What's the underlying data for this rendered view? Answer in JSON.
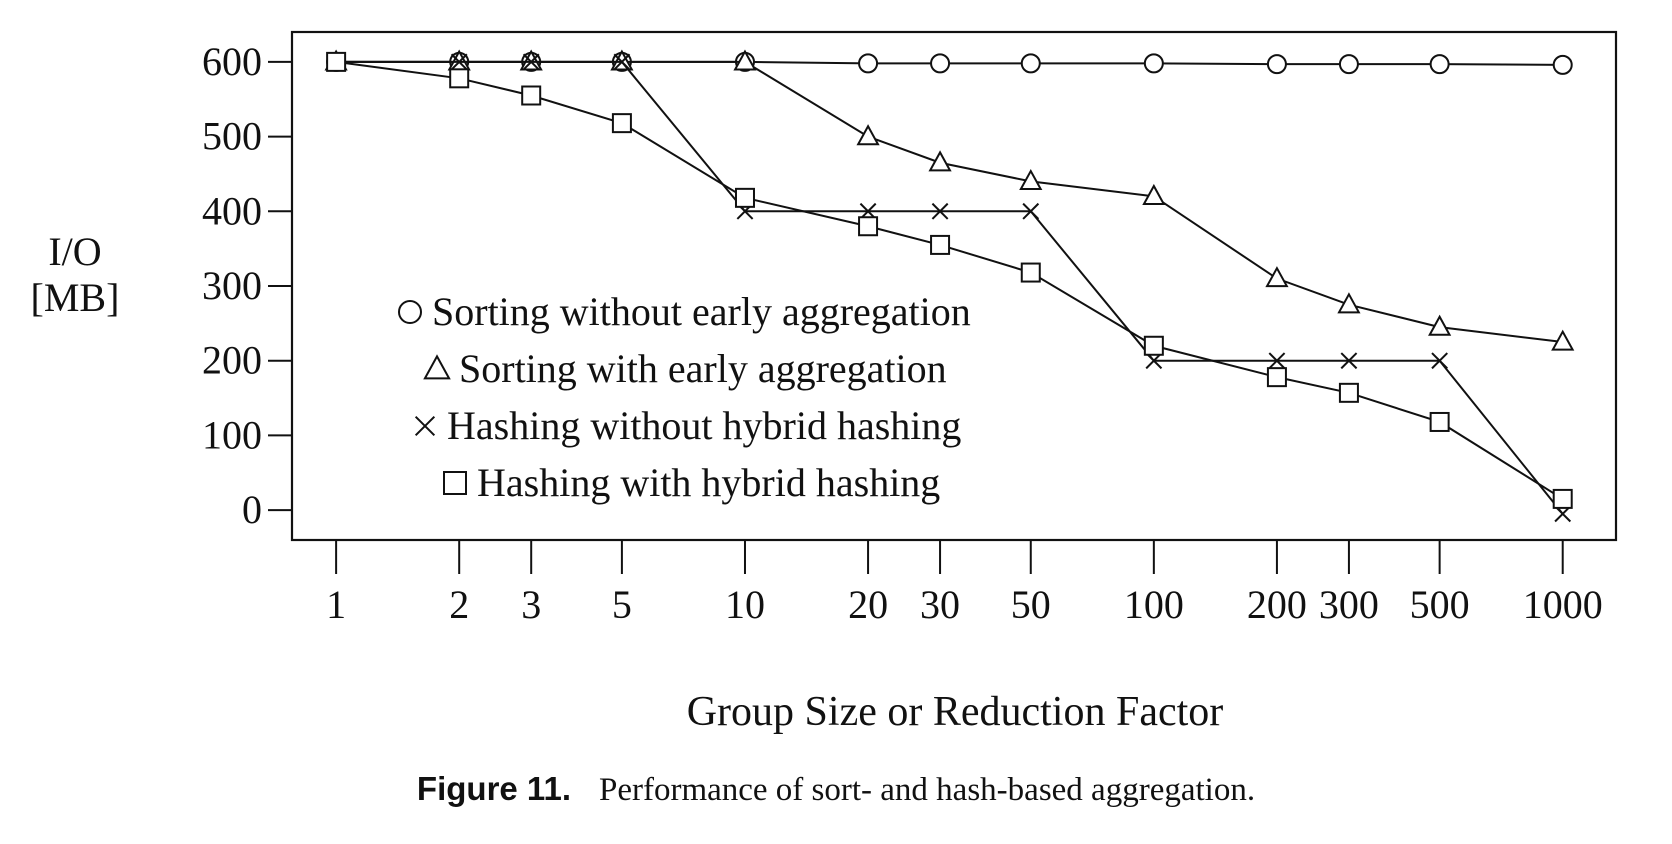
{
  "caption": {
    "label": "Figure 11.",
    "text": "Performance of sort- and hash-based aggregation."
  },
  "chart_data": {
    "type": "line",
    "xlabel": "Group Size or Reduction Factor",
    "ylabel_lines": [
      "I/O",
      "[MB]"
    ],
    "x_scale": "log",
    "x_ticks": [
      1,
      2,
      3,
      5,
      10,
      20,
      30,
      50,
      100,
      200,
      300,
      500,
      1000
    ],
    "x_tick_labels": [
      "1",
      "2",
      "3",
      "5",
      "10",
      "20",
      "30",
      "50",
      "100",
      "200",
      "300",
      "500",
      "1000"
    ],
    "y_ticks": [
      0,
      100,
      200,
      300,
      400,
      500,
      600
    ],
    "y_tick_labels": [
      "0",
      "100",
      "200",
      "300",
      "400",
      "500",
      "600"
    ],
    "ylim": [
      -40,
      640
    ],
    "xlim": [
      0.78,
      1350
    ],
    "grid": false,
    "legend_position": "lower-left",
    "series": [
      {
        "name": "Sorting without early aggregation",
        "marker": "circle",
        "x": [
          1,
          2,
          3,
          5,
          10,
          20,
          30,
          50,
          100,
          200,
          300,
          500,
          1000
        ],
        "y": [
          600,
          600,
          600,
          600,
          600,
          598,
          598,
          598,
          598,
          597,
          597,
          597,
          596
        ]
      },
      {
        "name": "Sorting with early aggregation",
        "marker": "triangle",
        "x": [
          1,
          2,
          3,
          5,
          10,
          20,
          30,
          50,
          100,
          200,
          300,
          500,
          1000
        ],
        "y": [
          600,
          600,
          600,
          600,
          600,
          500,
          465,
          440,
          420,
          310,
          275,
          245,
          225
        ]
      },
      {
        "name": "Hashing without hybrid hashing",
        "marker": "x",
        "x": [
          1,
          2,
          3,
          5,
          10,
          20,
          30,
          50,
          100,
          200,
          300,
          500,
          1000
        ],
        "y": [
          600,
          600,
          600,
          600,
          400,
          400,
          400,
          400,
          200,
          200,
          200,
          200,
          -5
        ]
      },
      {
        "name": "Hashing with hybrid hashing",
        "marker": "square",
        "x": [
          1,
          2,
          3,
          5,
          10,
          20,
          30,
          50,
          100,
          200,
          300,
          500,
          1000
        ],
        "y": [
          600,
          578,
          555,
          518,
          418,
          380,
          355,
          318,
          220,
          178,
          157,
          118,
          15
        ]
      }
    ]
  }
}
